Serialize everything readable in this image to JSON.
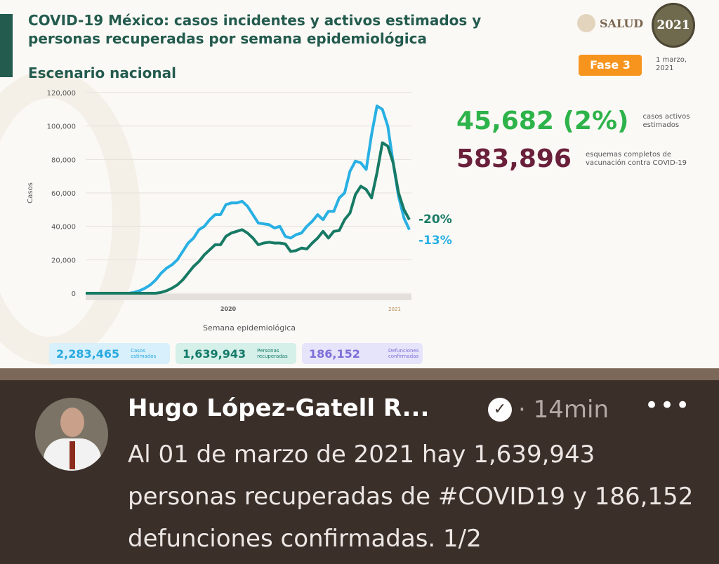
{
  "slide": {
    "title": "COVID-19 México: casos incidentes y activos estimados y personas recuperadas por semana epidemiológica",
    "subtitle": "Escenario nacional",
    "logo_text": "SALUD",
    "logo2021_text": "2021",
    "phase": "Fase 3",
    "date": "1 marzo, 2021",
    "active_cases": {
      "value": "45,682 (2%)",
      "label": "casos activos estimados",
      "color": "#2db34a"
    },
    "vaccination": {
      "value": "583,896",
      "label": "esquemas completos de vacunación contra COVID-19",
      "color": "#6a1f3a"
    },
    "tiles": [
      {
        "value": "2,283,465",
        "label": "Casos estimados",
        "color": "#29a9e0",
        "bg": "#d7f0fb"
      },
      {
        "value": "1,639,943",
        "label": "Personas recuperadas",
        "color": "#127a68",
        "bg": "#d5efe9"
      },
      {
        "value": "186,152",
        "label": "Defunciones confirmadas",
        "color": "#7b6fd8",
        "bg": "#e6e4fb"
      }
    ]
  },
  "chart_data": {
    "type": "line",
    "xlabel": "Semana epidemiológica",
    "ylabel": "Casos",
    "ylim": [
      0,
      120000
    ],
    "yticks": [
      "0",
      "20,000",
      "40,000",
      "60,000",
      "80,000",
      "100,000",
      "120,000"
    ],
    "xgroups": [
      "2020",
      "2021"
    ],
    "grid": true,
    "series": [
      {
        "color": "#29b0e3",
        "end_label": "-13%",
        "values": [
          0,
          0,
          0,
          0,
          0,
          0,
          0,
          0,
          0,
          500,
          1500,
          3000,
          5000,
          8000,
          12000,
          15000,
          17000,
          20000,
          25000,
          30000,
          33000,
          38000,
          40000,
          44000,
          47000,
          47000,
          53000,
          54000,
          54000,
          55000,
          52000,
          47000,
          42000,
          41500,
          41000,
          39000,
          40000,
          34000,
          33000,
          35000,
          36000,
          40000,
          43000,
          47000,
          44000,
          49000,
          49000,
          57000,
          60000,
          73000,
          79000,
          78000,
          74000,
          95000,
          112000,
          110000,
          100000,
          78000,
          58000,
          45000,
          38000
        ]
      },
      {
        "color": "#177a64",
        "end_label": "-20%",
        "values": [
          0,
          0,
          0,
          0,
          0,
          0,
          0,
          0,
          0,
          0,
          0,
          0,
          0,
          0,
          500,
          1500,
          3000,
          5000,
          8000,
          12000,
          16000,
          19000,
          23000,
          26000,
          29000,
          29000,
          34000,
          36000,
          37000,
          38000,
          36000,
          33000,
          29000,
          30000,
          30500,
          30000,
          30000,
          29500,
          25000,
          25500,
          27000,
          26500,
          30000,
          33000,
          37000,
          33000,
          37000,
          37500,
          44000,
          48000,
          59000,
          64000,
          62000,
          57000,
          72000,
          90000,
          88000,
          78000,
          60000,
          50000,
          44000
        ]
      }
    ]
  },
  "tweet": {
    "name": "Hugo López-Gatell R...",
    "time": "· 14min",
    "more": "•••",
    "text_1": "Al 01 de marzo de 2021 hay 1,639,943 personas recuperadas de ",
    "hashtag": "#COVID19",
    "text_2": " y 186,152 defunciones confirmadas. 1/2"
  }
}
